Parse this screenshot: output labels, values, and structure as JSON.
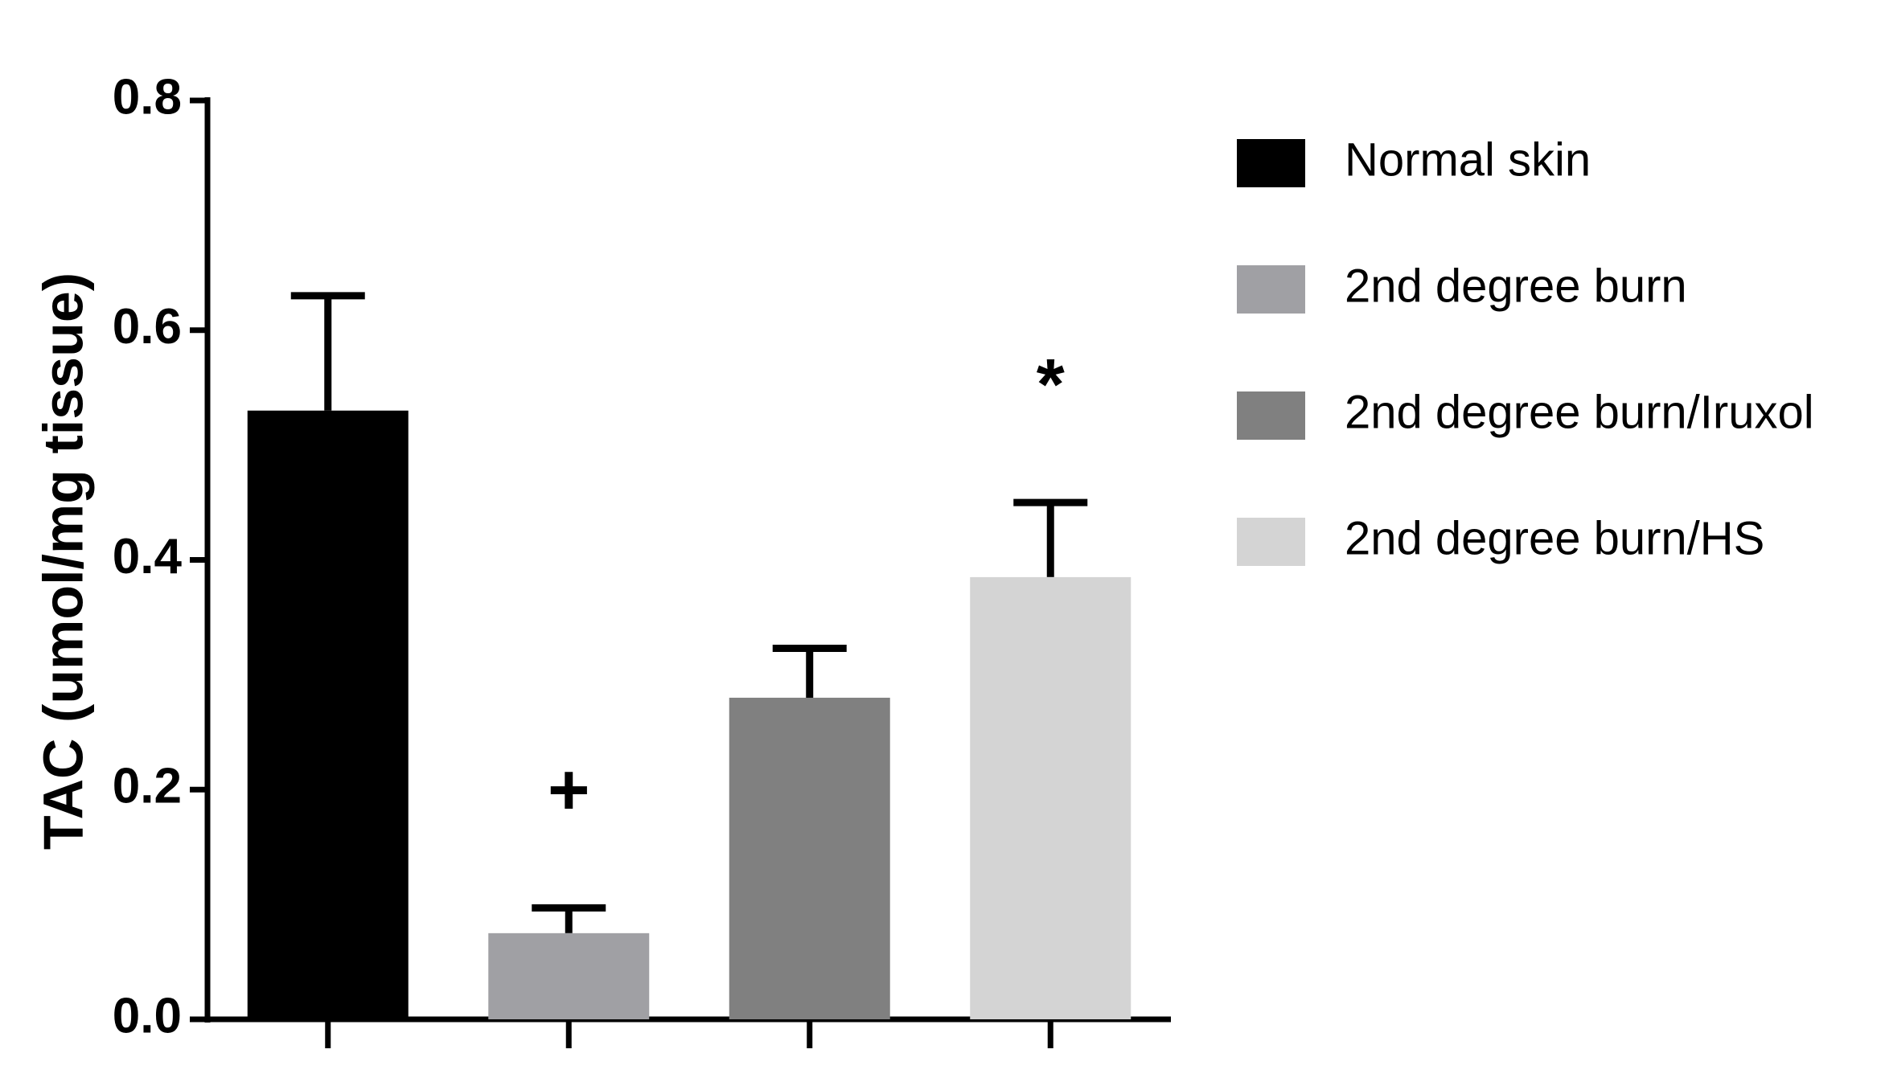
{
  "chart_data": {
    "type": "bar",
    "y_label": "TAC (umol/mg tissue)",
    "categories": [
      null,
      null,
      null,
      null
    ],
    "series": [
      {
        "name": "Normal skin",
        "color": "#000000",
        "values": [
          0.53,
          null,
          null,
          null
        ],
        "errors": [
          0.1,
          null,
          null,
          null
        ]
      },
      {
        "name": "2nd degree burn",
        "color": "#a0a0a4",
        "values": [
          null,
          0.075,
          null,
          null
        ],
        "errors": [
          null,
          0.022,
          null,
          null
        ],
        "annotation": "+"
      },
      {
        "name": "2nd degree burn/Iruxol",
        "color": "#808080",
        "values": [
          null,
          null,
          0.28,
          null
        ],
        "errors": [
          null,
          null,
          0.043,
          null
        ]
      },
      {
        "name": "2nd degree burn/HS",
        "color": "#d4d4d4",
        "values": [
          null,
          null,
          null,
          0.385
        ],
        "errors": [
          null,
          null,
          null,
          0.065
        ],
        "annotation": "*"
      }
    ],
    "ylim": [
      0,
      0.8
    ],
    "yticks": [
      {
        "value": 0,
        "label": "0.0"
      },
      0.2,
      0.4,
      0.6,
      0.8
    ],
    "legend": "right"
  }
}
